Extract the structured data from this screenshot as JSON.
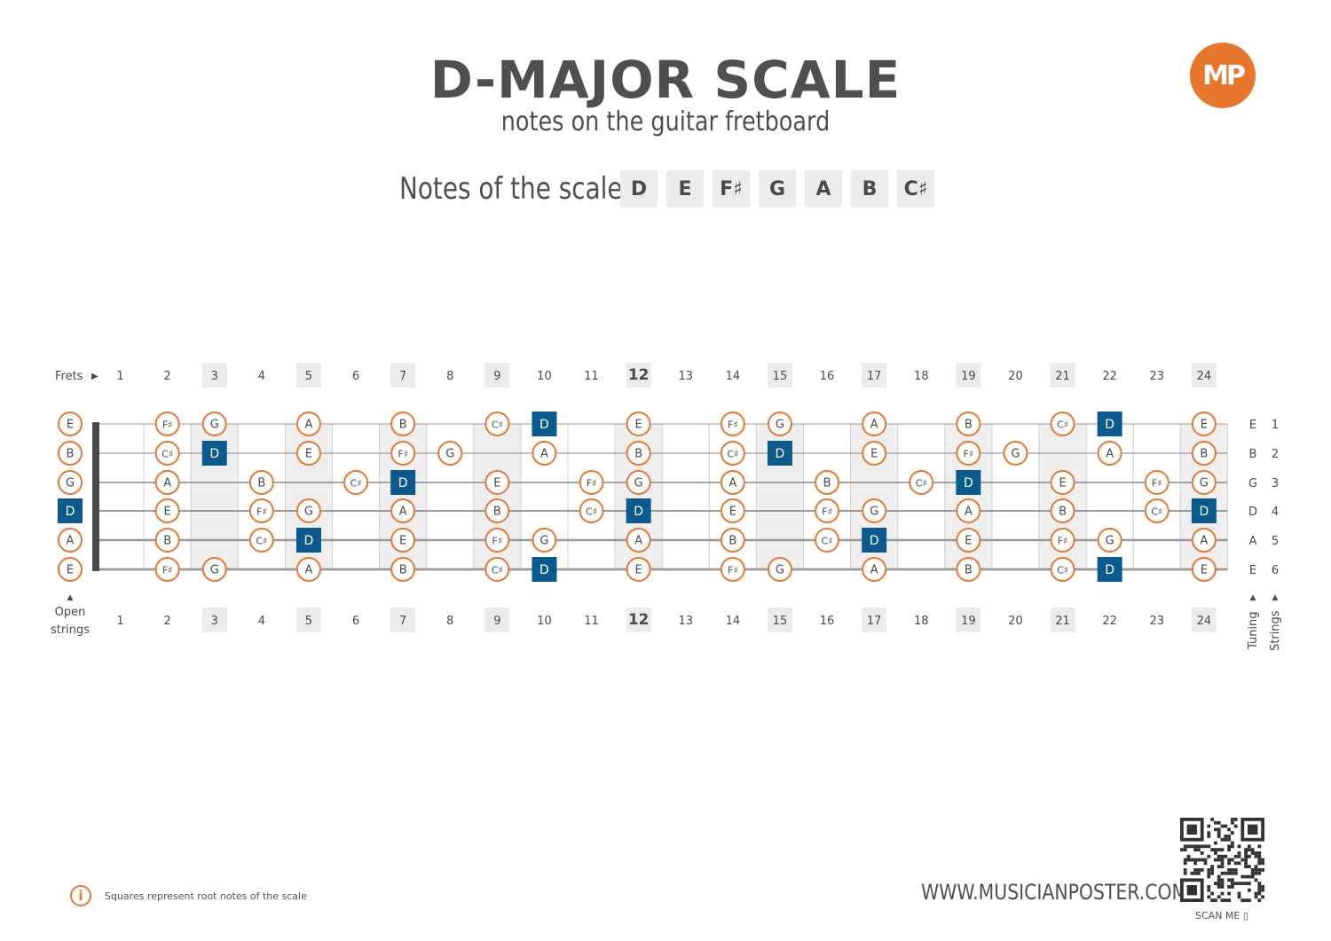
{
  "title": "D-MAJOR SCALE",
  "subtitle": "notes on the guitar fretboard",
  "logo_text": "MP",
  "scale_label": "Notes of the scale:",
  "scale_notes": [
    "D",
    "E",
    "F♯",
    "G",
    "A",
    "B",
    "C♯"
  ],
  "frets_label": "Frets",
  "open_strings_label_1": "Open",
  "open_strings_label_2": "strings",
  "tuning_label": "Tuning",
  "strings_label": "Strings",
  "info_text": "Squares represent root notes of the scale",
  "website": "WWW.MUSICIANPOSTER.COM",
  "scan_me": "SCAN ME",
  "colors": {
    "accent": "#e8772e",
    "root": "#0b5a8e",
    "marker_bg": "#ececec",
    "string": "#9a9a9a",
    "nut": "#4a4a4a"
  },
  "chart_data": {
    "type": "fretboard",
    "fret_count": 24,
    "fret_numbers": [
      1,
      2,
      3,
      4,
      5,
      6,
      7,
      8,
      9,
      10,
      11,
      12,
      13,
      14,
      15,
      16,
      17,
      18,
      19,
      20,
      21,
      22,
      23,
      24
    ],
    "marker_frets": [
      3,
      5,
      7,
      9,
      12,
      15,
      17,
      19,
      21,
      24
    ],
    "highlight_fret": 12,
    "strings": [
      {
        "number": 1,
        "tuning": "E",
        "notes": [
          "E",
          "",
          "F♯",
          "G",
          "",
          "A",
          "",
          "B",
          "",
          "C♯",
          "D",
          "",
          "E",
          "",
          "F♯",
          "G",
          "",
          "A",
          "",
          "B",
          "",
          "C♯",
          "D",
          "",
          "E"
        ]
      },
      {
        "number": 2,
        "tuning": "B",
        "notes": [
          "B",
          "",
          "C♯",
          "D",
          "",
          "E",
          "",
          "F♯",
          "G",
          "",
          "A",
          "",
          "B",
          "",
          "C♯",
          "D",
          "",
          "E",
          "",
          "F♯",
          "G",
          "",
          "A",
          "",
          "B"
        ]
      },
      {
        "number": 3,
        "tuning": "G",
        "notes": [
          "G",
          "",
          "A",
          "",
          "B",
          "",
          "C♯",
          "D",
          "",
          "E",
          "",
          "F♯",
          "G",
          "",
          "A",
          "",
          "B",
          "",
          "C♯",
          "D",
          "",
          "E",
          "",
          "F♯",
          "G"
        ]
      },
      {
        "number": 4,
        "tuning": "D",
        "notes": [
          "D",
          "",
          "E",
          "",
          "F♯",
          "G",
          "",
          "A",
          "",
          "B",
          "",
          "C♯",
          "D",
          "",
          "E",
          "",
          "F♯",
          "G",
          "",
          "A",
          "",
          "B",
          "",
          "C♯",
          "D"
        ]
      },
      {
        "number": 5,
        "tuning": "A",
        "notes": [
          "A",
          "",
          "B",
          "",
          "C♯",
          "D",
          "",
          "E",
          "",
          "F♯",
          "G",
          "",
          "A",
          "",
          "B",
          "",
          "C♯",
          "D",
          "",
          "E",
          "",
          "F♯",
          "G",
          "",
          "A"
        ]
      },
      {
        "number": 6,
        "tuning": "E",
        "notes": [
          "E",
          "",
          "F♯",
          "G",
          "",
          "A",
          "",
          "B",
          "",
          "C♯",
          "D",
          "",
          "E",
          "",
          "F♯",
          "G",
          "",
          "A",
          "",
          "B",
          "",
          "C♯",
          "D",
          "",
          "E"
        ]
      }
    ],
    "root_note": "D"
  }
}
